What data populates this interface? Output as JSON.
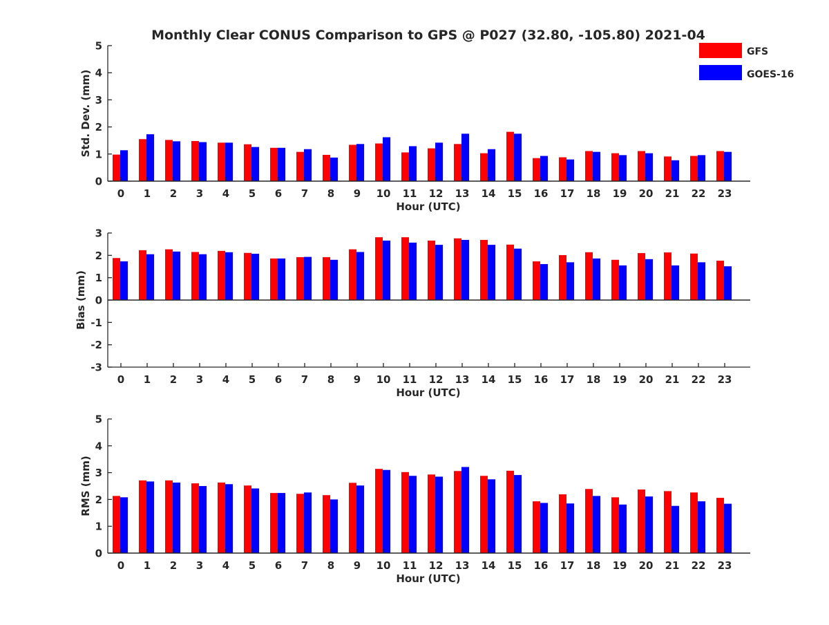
{
  "title": "Monthly Clear CONUS Comparison to GPS @ P027 (32.80, -105.80) 2021-04",
  "legend": [
    {
      "name": "GFS",
      "color": "#ff0000"
    },
    {
      "name": "GOES-16",
      "color": "#0000ff"
    }
  ],
  "chart_data": [
    {
      "type": "bar",
      "categories": [
        "0",
        "1",
        "2",
        "3",
        "4",
        "5",
        "6",
        "7",
        "8",
        "9",
        "10",
        "11",
        "12",
        "13",
        "14",
        "15",
        "16",
        "17",
        "18",
        "19",
        "20",
        "21",
        "22",
        "23"
      ],
      "xlabel": "Hour (UTC)",
      "ylabel": "Std. Dev. (mm)",
      "ylim": [
        0,
        5
      ],
      "yticks": [
        "0",
        "1",
        "2",
        "3",
        "4",
        "5"
      ],
      "series": [
        {
          "name": "GFS",
          "color": "#ff0000",
          "values": [
            0.98,
            1.55,
            1.52,
            1.48,
            1.42,
            1.36,
            1.23,
            1.08,
            0.97,
            1.34,
            1.39,
            1.06,
            1.21,
            1.37,
            1.03,
            1.82,
            0.85,
            0.88,
            1.11,
            1.03,
            1.11,
            0.91,
            0.93,
            1.11
          ]
        },
        {
          "name": "GOES-16",
          "color": "#0000ff",
          "values": [
            1.14,
            1.73,
            1.47,
            1.44,
            1.42,
            1.26,
            1.23,
            1.18,
            0.87,
            1.37,
            1.62,
            1.29,
            1.42,
            1.75,
            1.18,
            1.75,
            0.93,
            0.8,
            1.08,
            0.96,
            1.03,
            0.77,
            0.96,
            1.08
          ]
        }
      ]
    },
    {
      "type": "bar",
      "categories": [
        "0",
        "1",
        "2",
        "3",
        "4",
        "5",
        "6",
        "7",
        "8",
        "9",
        "10",
        "11",
        "12",
        "13",
        "14",
        "15",
        "16",
        "17",
        "18",
        "19",
        "20",
        "21",
        "22",
        "23"
      ],
      "xlabel": "Hour (UTC)",
      "ylabel": "Bias (mm)",
      "ylim": [
        -3,
        3
      ],
      "yticks": [
        "-3",
        "-2",
        "-1",
        "0",
        "1",
        "2",
        "3"
      ],
      "series": [
        {
          "name": "GFS",
          "color": "#ff0000",
          "values": [
            1.88,
            2.23,
            2.27,
            2.15,
            2.2,
            2.11,
            1.86,
            1.92,
            1.92,
            2.27,
            2.81,
            2.81,
            2.66,
            2.76,
            2.69,
            2.48,
            1.73,
            2.01,
            2.14,
            1.8,
            2.1,
            2.13,
            2.08,
            1.76
          ]
        },
        {
          "name": "GOES-16",
          "color": "#0000ff",
          "values": [
            1.73,
            2.05,
            2.17,
            2.05,
            2.14,
            2.07,
            1.86,
            1.93,
            1.8,
            2.15,
            2.66,
            2.57,
            2.47,
            2.69,
            2.47,
            2.3,
            1.61,
            1.69,
            1.86,
            1.55,
            1.83,
            1.55,
            1.69,
            1.51
          ]
        }
      ]
    },
    {
      "type": "bar",
      "categories": [
        "0",
        "1",
        "2",
        "3",
        "4",
        "5",
        "6",
        "7",
        "8",
        "9",
        "10",
        "11",
        "12",
        "13",
        "14",
        "15",
        "16",
        "17",
        "18",
        "19",
        "20",
        "21",
        "22",
        "23"
      ],
      "xlabel": "Hour (UTC)",
      "ylabel": "RMS (mm)",
      "ylim": [
        0,
        5
      ],
      "yticks": [
        "0",
        "1",
        "2",
        "3",
        "4",
        "5"
      ],
      "series": [
        {
          "name": "GFS",
          "color": "#ff0000",
          "values": [
            2.13,
            2.71,
            2.71,
            2.6,
            2.63,
            2.52,
            2.24,
            2.21,
            2.16,
            2.62,
            3.14,
            3.02,
            2.93,
            3.06,
            2.88,
            3.07,
            1.93,
            2.19,
            2.39,
            2.08,
            2.37,
            2.31,
            2.26,
            2.06
          ]
        },
        {
          "name": "GOES-16",
          "color": "#0000ff",
          "values": [
            2.08,
            2.67,
            2.63,
            2.5,
            2.57,
            2.41,
            2.24,
            2.26,
            2.0,
            2.52,
            3.1,
            2.88,
            2.85,
            3.21,
            2.75,
            2.91,
            1.87,
            1.85,
            2.13,
            1.81,
            2.11,
            1.76,
            1.93,
            1.84
          ]
        }
      ]
    }
  ]
}
